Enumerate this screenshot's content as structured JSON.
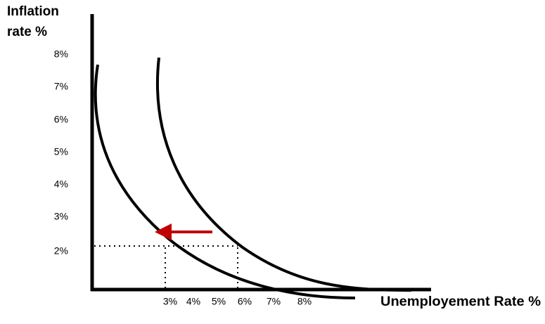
{
  "y_axis_title": [
    "Inflation",
    "rate %"
  ],
  "y_tick_labels": [
    "8%",
    "7%",
    "6%",
    "5%",
    "4%",
    "3%",
    "2%"
  ],
  "x_tick_labels": [
    "3%",
    "4%",
    "5%",
    "6%",
    "7%",
    "8%"
  ],
  "x_axis_title": "Unemployement Rate %"
}
